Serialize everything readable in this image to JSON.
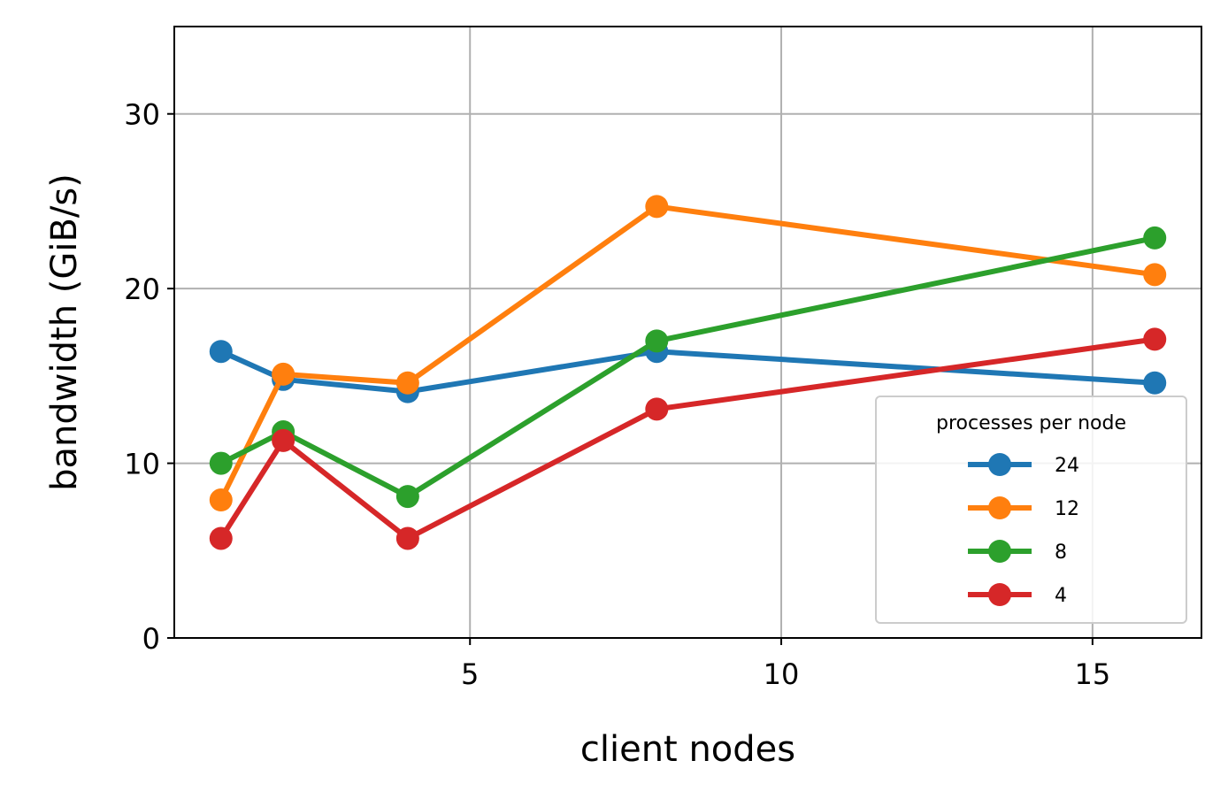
{
  "chart_data": {
    "type": "line",
    "xlabel": "client nodes",
    "ylabel": "bandwidth (GiB/s)",
    "x": [
      1,
      2,
      4,
      8,
      16
    ],
    "xlim": [
      0.25,
      16.75
    ],
    "ylim": [
      0,
      35
    ],
    "xticks": [
      5,
      10,
      15
    ],
    "yticks": [
      0,
      10,
      20,
      30
    ],
    "xtick_labels": [
      "5",
      "10",
      "15"
    ],
    "ytick_labels": [
      "0",
      "10",
      "20",
      "30"
    ],
    "grid": true,
    "legend": {
      "title": "processes per node",
      "placement": "lower-right"
    },
    "series": [
      {
        "name": "24",
        "color": "#1f77b4",
        "values": [
          16.4,
          14.8,
          14.1,
          16.4,
          14.6
        ]
      },
      {
        "name": "12",
        "color": "#ff7f0e",
        "values": [
          7.9,
          15.1,
          14.6,
          24.7,
          20.8
        ]
      },
      {
        "name": "8",
        "color": "#2ca02c",
        "values": [
          10.0,
          11.8,
          8.1,
          17.0,
          22.9
        ]
      },
      {
        "name": "4",
        "color": "#d62728",
        "values": [
          5.7,
          11.3,
          5.7,
          13.1,
          17.1
        ]
      }
    ]
  }
}
